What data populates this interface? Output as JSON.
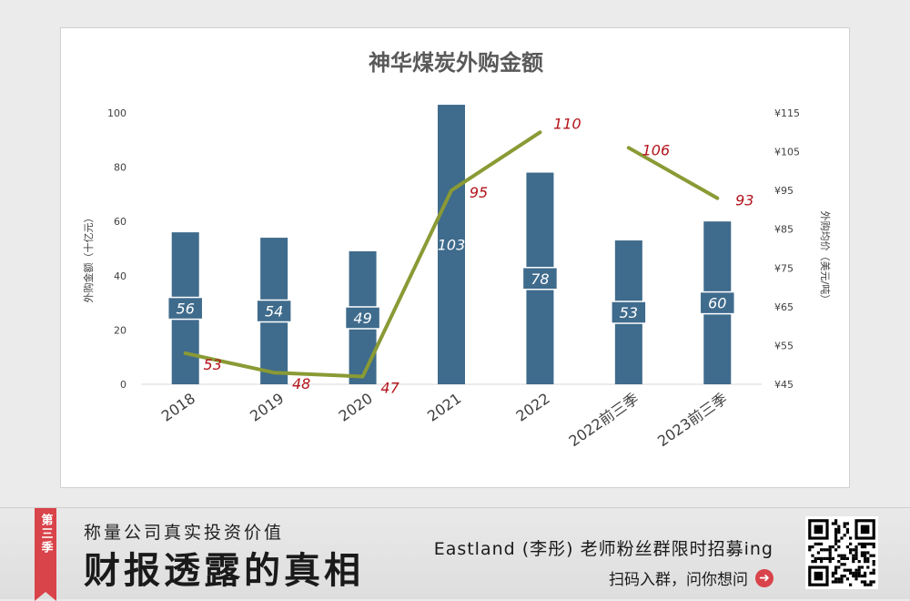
{
  "chart_data": {
    "type": "bar+line",
    "title": "神华煤炭外购金额",
    "categories": [
      "2018",
      "2019",
      "2020",
      "2021",
      "2022",
      "2022前三季",
      "2023前三季"
    ],
    "series": [
      {
        "name": "外购金额",
        "kind": "bar",
        "axis": "left",
        "color": "#3f6b8c",
        "values": [
          56,
          54,
          49,
          103,
          78,
          53,
          60
        ],
        "labels": [
          "56",
          "54",
          "49",
          "103",
          "78",
          "53",
          "60"
        ]
      },
      {
        "name": "外购均价",
        "kind": "line",
        "axis": "right",
        "color": "#8a9a35",
        "segments": [
          [
            0,
            1,
            2,
            3,
            4
          ],
          [
            5,
            6
          ]
        ],
        "values": [
          53,
          48,
          47,
          95,
          110,
          106,
          93
        ],
        "labels": [
          "53",
          "48",
          "47",
          "95",
          "110",
          "106",
          "93"
        ]
      }
    ],
    "ylabel": "外购金额（十亿元）",
    "ylim": [
      0,
      100
    ],
    "yticks": [
      "0",
      "20",
      "40",
      "60",
      "80",
      "100"
    ],
    "y2label": "外购均价（美元/吨）",
    "y2lim": [
      45,
      115
    ],
    "y2ticks": [
      "¥45",
      "¥55",
      "¥65",
      "¥75",
      "¥85",
      "¥95",
      "¥105",
      "¥115"
    ],
    "label_color": "#b3141c"
  },
  "banner": {
    "season": "第三季",
    "slogan": "称量公司真实投资价值",
    "brand": "财报透露的真相",
    "recruit": "Eastland (李彤) 老师粉丝群限时招募ing",
    "scan": "扫码入群，问你想问",
    "arrow": "➜"
  }
}
